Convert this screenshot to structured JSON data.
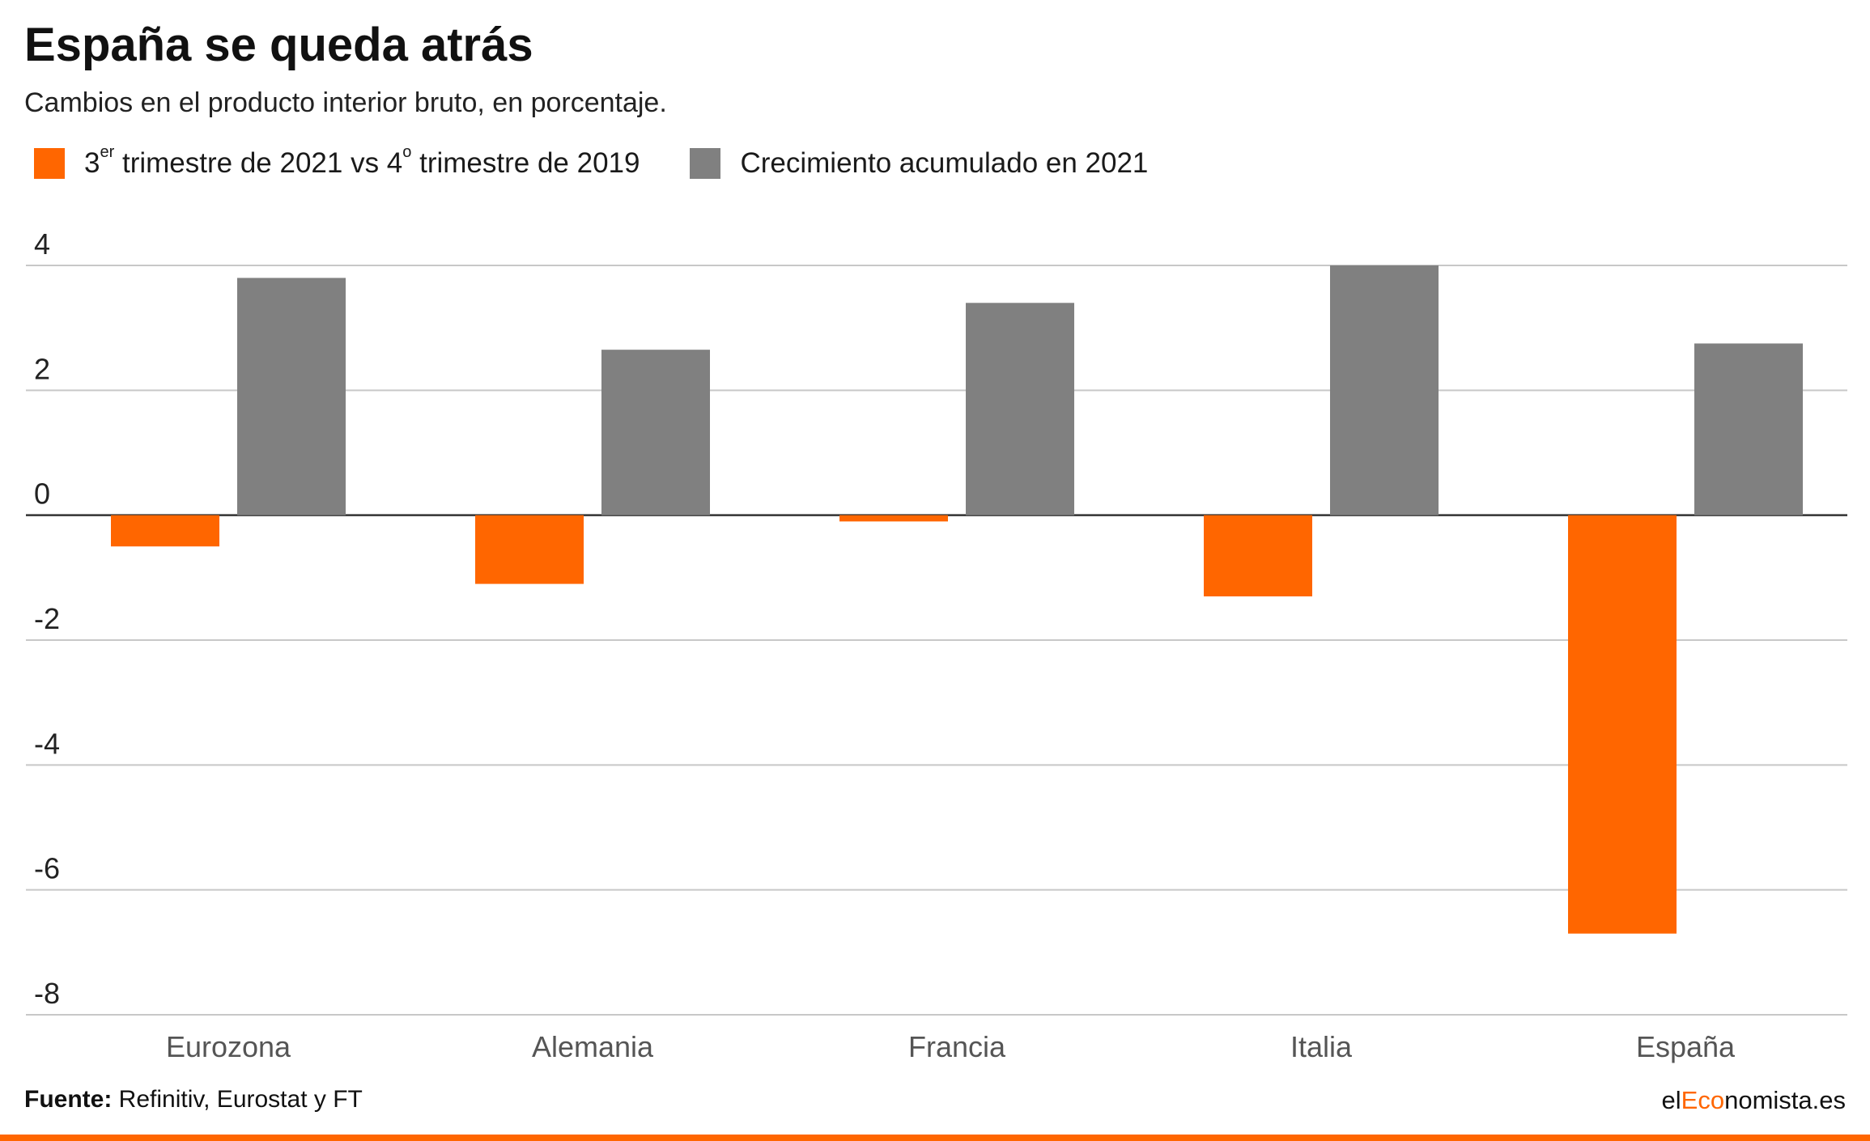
{
  "header": {
    "title": "España se queda atrás",
    "subtitle": "Cambios en el producto interior bruto, en porcentaje."
  },
  "legend": {
    "series1_pre": "3",
    "series1_sup": "er",
    "series1_mid": " trimestre de 2021 vs 4",
    "series1_sup2": "o",
    "series1_post": " trimestre de 2019",
    "series2": "Crecimiento acumulado en 2021"
  },
  "colors": {
    "series1": "#ff6600",
    "series2": "#808080",
    "gridline": "#c8c8c8",
    "zero_line": "#333333"
  },
  "chart_data": {
    "type": "bar",
    "categories": [
      "Eurozona",
      "Alemania",
      "Francia",
      "Italia",
      "España"
    ],
    "series": [
      {
        "name": "3er trimestre de 2021 vs 4o trimestre de 2019",
        "values": [
          -0.5,
          -1.1,
          -0.1,
          -1.3,
          -6.7
        ]
      },
      {
        "name": "Crecimiento acumulado en 2021",
        "values": [
          3.8,
          2.65,
          3.4,
          4.0,
          2.75
        ]
      }
    ],
    "yticks": [
      "4",
      "2",
      "0",
      "-2",
      "-4",
      "-6",
      "-8"
    ],
    "ylim": [
      -8,
      4
    ],
    "grid": true
  },
  "footer": {
    "source_label": "Fuente:",
    "source_text": " Refinitiv, Eurostat y FT",
    "brand_pre": "el",
    "brand_accent": "Eco",
    "brand_post": "nomista.es"
  }
}
